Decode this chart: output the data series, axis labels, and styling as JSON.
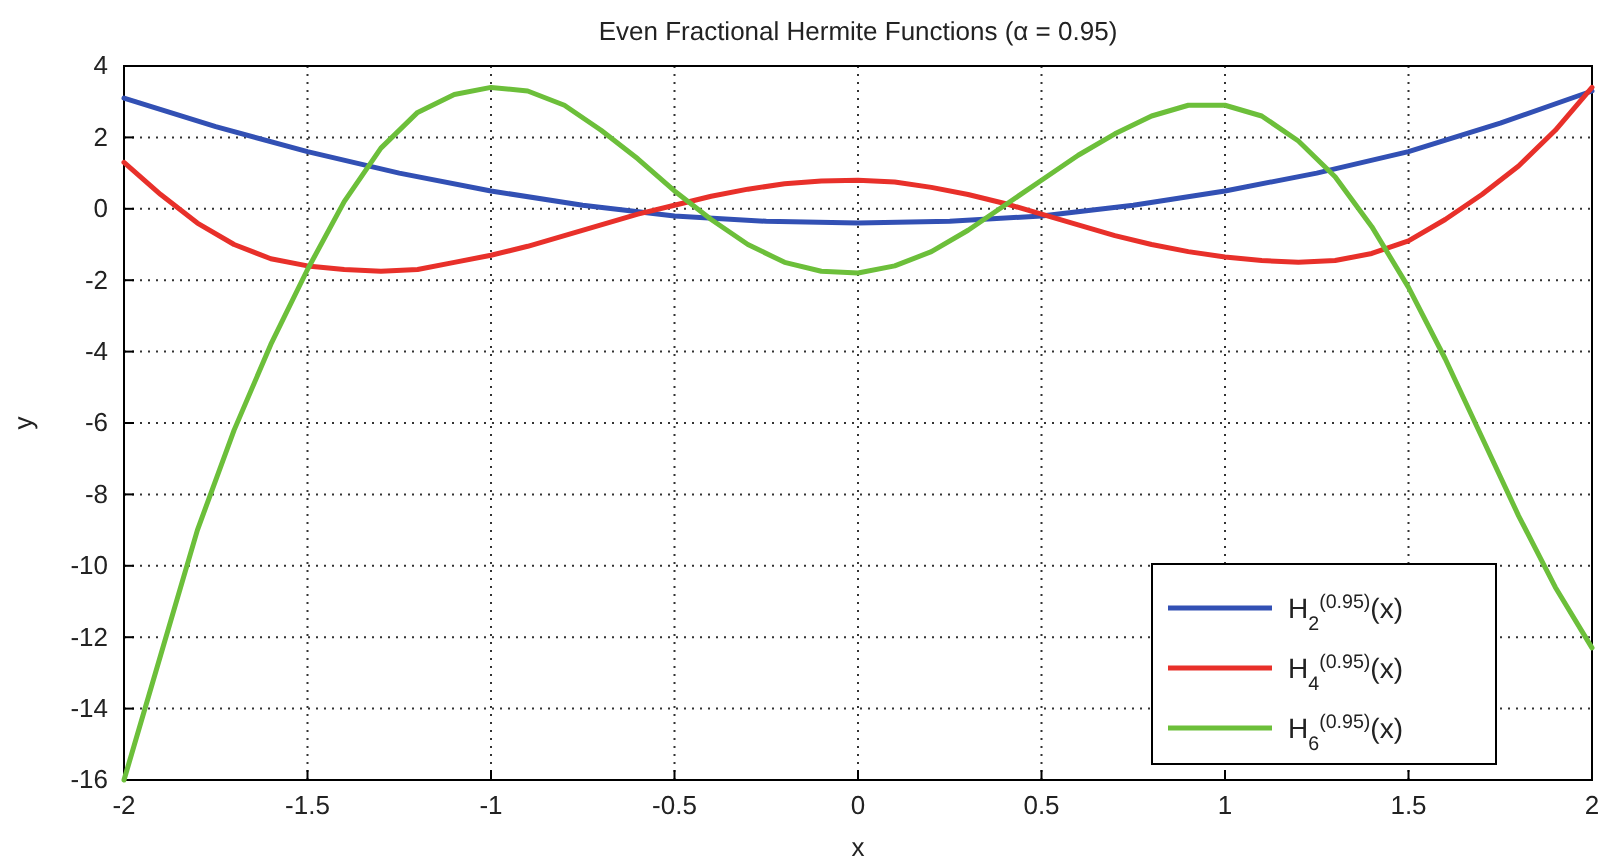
{
  "chart_data": {
    "type": "line",
    "title": "Even Fractional Hermite Functions (α = 0.95)",
    "xlabel": "x",
    "ylabel": "y",
    "xlim": [
      -2,
      2
    ],
    "xticks": [
      -2,
      -1.5,
      -1,
      -0.5,
      0,
      0.5,
      1,
      1.5,
      2
    ],
    "ylim": [
      -16,
      4
    ],
    "yticks": [
      -16,
      -14,
      -12,
      -10,
      -8,
      -6,
      -4,
      -2,
      0,
      2,
      4
    ],
    "grid": true,
    "legend": "bottom right",
    "marker": "none",
    "line_style": "solid",
    "series": [
      {
        "name": "H$_{2}$$^{(0.95)}$(x)",
        "color": "#3250b4",
        "x": [
          -2,
          -1.75,
          -1.5,
          -1.25,
          -1,
          -0.75,
          -0.5,
          -0.25,
          0,
          0.25,
          0.5,
          0.75,
          1,
          1.25,
          1.5,
          1.75,
          2
        ],
        "values": [
          3.1,
          2.3,
          1.6,
          1.0,
          0.5,
          0.1,
          -0.2,
          -0.35,
          -0.4,
          -0.35,
          -0.2,
          0.1,
          0.5,
          1.0,
          1.6,
          2.4,
          3.3
        ]
      },
      {
        "name": "H$_{4}$$^{(0.95)}$(x)",
        "color": "#e8302a",
        "x": [
          -2,
          -1.9,
          -1.8,
          -1.7,
          -1.6,
          -1.5,
          -1.4,
          -1.3,
          -1.2,
          -1.1,
          -1,
          -0.9,
          -0.8,
          -0.7,
          -0.6,
          -0.5,
          -0.4,
          -0.3,
          -0.2,
          -0.1,
          0,
          0.1,
          0.2,
          0.3,
          0.4,
          0.5,
          0.6,
          0.7,
          0.8,
          0.9,
          1,
          1.1,
          1.2,
          1.3,
          1.4,
          1.5,
          1.6,
          1.7,
          1.8,
          1.9,
          2
        ],
        "values": [
          1.3,
          0.4,
          -0.4,
          -1.0,
          -1.4,
          -1.6,
          -1.7,
          -1.75,
          -1.7,
          -1.5,
          -1.3,
          -1.05,
          -0.75,
          -0.45,
          -0.15,
          0.1,
          0.35,
          0.55,
          0.7,
          0.78,
          0.8,
          0.75,
          0.6,
          0.4,
          0.15,
          -0.15,
          -0.45,
          -0.75,
          -1.0,
          -1.2,
          -1.35,
          -1.45,
          -1.5,
          -1.45,
          -1.25,
          -0.9,
          -0.3,
          0.4,
          1.2,
          2.2,
          3.4
        ]
      },
      {
        "name": "H$_{6}$$^{(0.95)}$(x)",
        "color": "#6cbf3a",
        "x": [
          -2,
          -1.9,
          -1.8,
          -1.7,
          -1.6,
          -1.5,
          -1.4,
          -1.3,
          -1.2,
          -1.1,
          -1,
          -0.9,
          -0.8,
          -0.7,
          -0.6,
          -0.5,
          -0.4,
          -0.3,
          -0.2,
          -0.1,
          0,
          0.1,
          0.2,
          0.3,
          0.4,
          0.5,
          0.6,
          0.7,
          0.8,
          0.9,
          1,
          1.1,
          1.2,
          1.3,
          1.4,
          1.5,
          1.6,
          1.7,
          1.8,
          1.9,
          2
        ],
        "values": [
          -16,
          -12.5,
          -9,
          -6.2,
          -3.8,
          -1.7,
          0.2,
          1.7,
          2.7,
          3.2,
          3.4,
          3.3,
          2.9,
          2.2,
          1.4,
          0.5,
          -0.3,
          -1.0,
          -1.5,
          -1.75,
          -1.8,
          -1.6,
          -1.2,
          -0.6,
          0.1,
          0.8,
          1.5,
          2.1,
          2.6,
          2.9,
          2.9,
          2.6,
          1.9,
          0.9,
          -0.5,
          -2.2,
          -4.2,
          -6.4,
          -8.6,
          -10.6,
          -12.3
        ]
      }
    ]
  }
}
